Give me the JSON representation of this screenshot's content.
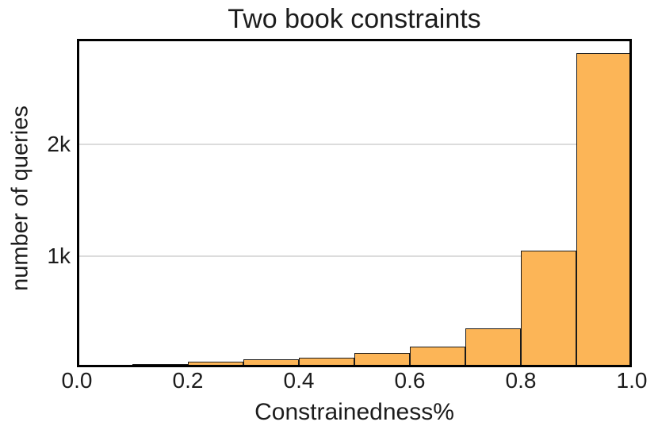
{
  "chart_data": {
    "type": "bar",
    "subtype": "histogram",
    "title": "Two book constraints",
    "xlabel": "Constrainedness%",
    "ylabel": "number of queries",
    "bin_edges": [
      0.0,
      0.1,
      0.2,
      0.3,
      0.4,
      0.5,
      0.6,
      0.7,
      0.8,
      0.9,
      1.0
    ],
    "values": [
      10,
      30,
      48,
      68,
      88,
      125,
      188,
      350,
      1045,
      2820
    ],
    "xlim": [
      0.0,
      1.0
    ],
    "ylim": [
      0,
      2950
    ],
    "xticks": [
      {
        "value": 0.0,
        "label": "0.0"
      },
      {
        "value": 0.2,
        "label": "0.2"
      },
      {
        "value": 0.4,
        "label": "0.4"
      },
      {
        "value": 0.6,
        "label": "0.6"
      },
      {
        "value": 0.8,
        "label": "0.8"
      },
      {
        "value": 1.0,
        "label": "1.0"
      }
    ],
    "yticks": [
      {
        "value": 1000,
        "label": "1k"
      },
      {
        "value": 2000,
        "label": "2k"
      }
    ],
    "grid": "horizontal",
    "legend": "none",
    "colors": {
      "bar_fill": "#fcb557",
      "bar_edge": "#1a1a1a",
      "grid": "#dcdcdc",
      "frame": "#000000",
      "text": "#1c1c1c"
    }
  }
}
